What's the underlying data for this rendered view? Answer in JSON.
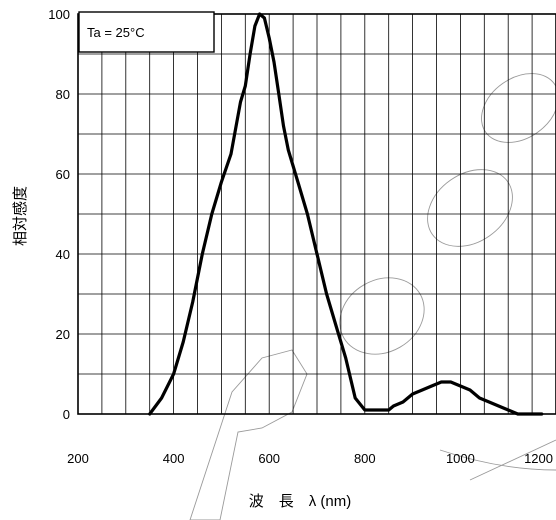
{
  "chart_data": {
    "type": "line",
    "annotation": "Ta = 25°C",
    "ylabel": "相対感度",
    "xlabel": "波　長　λ (nm)",
    "xlim": [
      200,
      1200
    ],
    "ylim": [
      0,
      100
    ],
    "x_ticks": [
      "200",
      "400",
      "600",
      "800",
      "1000",
      "1200"
    ],
    "y_ticks": [
      "0",
      "20",
      "40",
      "60",
      "80",
      "100"
    ],
    "grid": true,
    "series": [
      {
        "x": [
          350,
          375,
          400,
          420,
          440,
          460,
          480,
          500,
          520,
          540,
          550,
          560,
          570,
          580,
          590,
          600,
          610,
          620,
          630,
          640,
          660,
          680,
          700,
          720,
          740,
          760,
          780,
          800,
          820,
          840,
          850,
          860,
          880,
          900,
          920,
          940,
          960,
          980,
          1000,
          1020,
          1040,
          1060,
          1080,
          1100,
          1120,
          1150,
          1170
        ],
        "y": [
          0,
          4,
          10,
          18,
          28,
          40,
          50,
          58,
          65,
          78,
          82,
          90,
          97,
          100,
          99,
          94,
          88,
          80,
          72,
          66,
          58,
          50,
          40,
          30,
          22,
          14,
          4,
          1,
          1,
          1,
          1,
          2,
          3,
          5,
          6,
          7,
          8,
          8,
          7,
          6,
          4,
          3,
          2,
          1,
          0,
          0,
          0
        ]
      }
    ]
  }
}
